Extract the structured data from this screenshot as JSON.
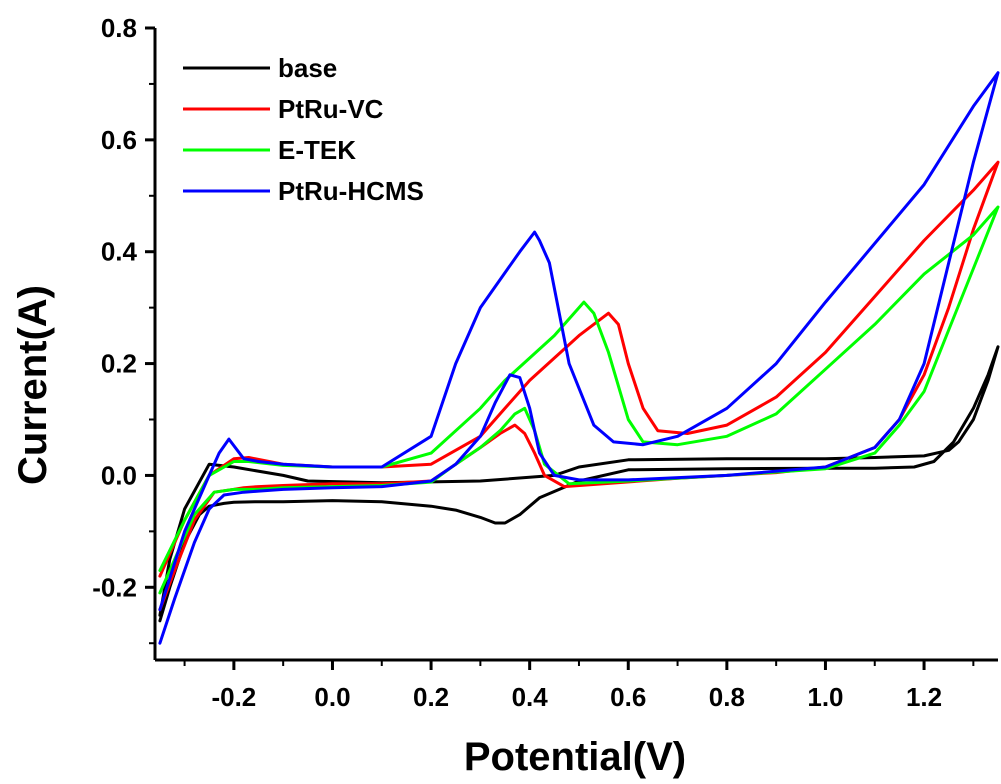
{
  "chart_data": {
    "type": "line",
    "title": "",
    "xlabel": "Potential(V)",
    "ylabel": "Current(A)",
    "xlim": [
      -0.36,
      1.35
    ],
    "ylim": [
      -0.33,
      0.8
    ],
    "x_ticks": [
      -0.2,
      0.0,
      0.2,
      0.4,
      0.6,
      0.8,
      1.0,
      1.2
    ],
    "x_tick_labels": [
      "-0.2",
      "0.0",
      "0.2",
      "0.4",
      "0.6",
      "0.8",
      "1.0",
      "1.2"
    ],
    "y_ticks": [
      -0.2,
      0.0,
      0.2,
      0.4,
      0.6,
      0.8
    ],
    "y_tick_labels": [
      "-0.2",
      "0.0",
      "0.2",
      "0.4",
      "0.6",
      "0.8"
    ],
    "grid": false,
    "legend_position": "top-left",
    "series": [
      {
        "name": "base",
        "color": "#000000",
        "x": [
          -0.35,
          -0.33,
          -0.3,
          -0.27,
          -0.25,
          -0.22,
          -0.2,
          -0.15,
          -0.1,
          0.0,
          0.1,
          0.2,
          0.25,
          0.3,
          0.33,
          0.35,
          0.38,
          0.42,
          0.5,
          0.6,
          0.8,
          1.0,
          1.1,
          1.18,
          1.22,
          1.26,
          1.3,
          1.33,
          1.35,
          1.33,
          1.3,
          1.27,
          1.25,
          1.2,
          1.1,
          1.0,
          0.8,
          0.6,
          0.5,
          0.45,
          0.3,
          0.1,
          -0.05,
          -0.1,
          -0.2,
          -0.25,
          -0.3,
          -0.33,
          -0.35
        ],
        "y": [
          -0.26,
          -0.2,
          -0.12,
          -0.07,
          -0.055,
          -0.05,
          -0.048,
          -0.047,
          -0.047,
          -0.045,
          -0.047,
          -0.055,
          -0.062,
          -0.075,
          -0.085,
          -0.085,
          -0.07,
          -0.04,
          -0.01,
          0.01,
          0.012,
          0.013,
          0.013,
          0.015,
          0.025,
          0.06,
          0.12,
          0.18,
          0.23,
          0.17,
          0.1,
          0.06,
          0.045,
          0.035,
          0.032,
          0.03,
          0.03,
          0.028,
          0.015,
          0.0,
          -0.01,
          -0.013,
          -0.01,
          0.0,
          0.015,
          0.02,
          -0.06,
          -0.15,
          -0.25
        ]
      },
      {
        "name": "PtRu-VC",
        "color": "#ff0000",
        "x": [
          -0.35,
          -0.32,
          -0.28,
          -0.24,
          -0.2,
          -0.18,
          -0.15,
          -0.1,
          0.0,
          0.1,
          0.2,
          0.25,
          0.3,
          0.34,
          0.37,
          0.39,
          0.41,
          0.43,
          0.47,
          0.55,
          0.7,
          0.9,
          1.0,
          1.1,
          1.15,
          1.2,
          1.25,
          1.3,
          1.35,
          1.3,
          1.2,
          1.1,
          1.0,
          0.9,
          0.8,
          0.72,
          0.66,
          0.63,
          0.6,
          0.58,
          0.56,
          0.5,
          0.4,
          0.35,
          0.3,
          0.2,
          0.1,
          0.0,
          -0.1,
          -0.17,
          -0.2,
          -0.25,
          -0.3,
          -0.35
        ],
        "y": [
          -0.24,
          -0.17,
          -0.08,
          -0.03,
          -0.025,
          -0.022,
          -0.02,
          -0.018,
          -0.015,
          -0.015,
          -0.01,
          0.02,
          0.05,
          0.075,
          0.09,
          0.075,
          0.04,
          0.0,
          -0.02,
          -0.015,
          -0.005,
          0.005,
          0.015,
          0.05,
          0.1,
          0.18,
          0.3,
          0.44,
          0.56,
          0.51,
          0.42,
          0.32,
          0.22,
          0.14,
          0.09,
          0.075,
          0.08,
          0.12,
          0.2,
          0.27,
          0.29,
          0.25,
          0.17,
          0.12,
          0.07,
          0.02,
          0.015,
          0.015,
          0.02,
          0.032,
          0.03,
          0.0,
          -0.08,
          -0.18
        ]
      },
      {
        "name": "E-TEK",
        "color": "#00ff00",
        "x": [
          -0.35,
          -0.32,
          -0.28,
          -0.24,
          -0.2,
          -0.15,
          -0.1,
          0.0,
          0.1,
          0.2,
          0.25,
          0.3,
          0.34,
          0.37,
          0.39,
          0.41,
          0.43,
          0.48,
          0.6,
          0.8,
          1.0,
          1.1,
          1.15,
          1.2,
          1.25,
          1.3,
          1.35,
          1.3,
          1.2,
          1.1,
          1.0,
          0.9,
          0.8,
          0.7,
          0.63,
          0.6,
          0.56,
          0.53,
          0.51,
          0.45,
          0.35,
          0.3,
          0.2,
          0.1,
          0.0,
          -0.1,
          -0.17,
          -0.2,
          -0.25,
          -0.3,
          -0.35
        ],
        "y": [
          -0.21,
          -0.15,
          -0.07,
          -0.03,
          -0.025,
          -0.025,
          -0.022,
          -0.02,
          -0.018,
          -0.012,
          0.02,
          0.05,
          0.08,
          0.11,
          0.12,
          0.08,
          0.02,
          -0.015,
          -0.01,
          0.0,
          0.012,
          0.04,
          0.09,
          0.15,
          0.26,
          0.37,
          0.48,
          0.43,
          0.36,
          0.27,
          0.19,
          0.11,
          0.07,
          0.055,
          0.06,
          0.1,
          0.22,
          0.29,
          0.31,
          0.25,
          0.17,
          0.12,
          0.04,
          0.015,
          0.015,
          0.018,
          0.025,
          0.025,
          0.0,
          -0.08,
          -0.17
        ]
      },
      {
        "name": "PtRu-HCMS",
        "color": "#0000ff",
        "x": [
          -0.35,
          -0.32,
          -0.28,
          -0.25,
          -0.22,
          -0.18,
          -0.15,
          -0.1,
          0.0,
          0.1,
          0.2,
          0.25,
          0.3,
          0.33,
          0.36,
          0.38,
          0.4,
          0.42,
          0.45,
          0.5,
          0.6,
          0.8,
          1.0,
          1.1,
          1.15,
          1.2,
          1.25,
          1.3,
          1.35,
          1.3,
          1.2,
          1.0,
          0.9,
          0.8,
          0.7,
          0.63,
          0.57,
          0.53,
          0.48,
          0.44,
          0.42,
          0.41,
          0.38,
          0.3,
          0.25,
          0.2,
          0.1,
          0.0,
          -0.1,
          -0.15,
          -0.18,
          -0.21,
          -0.23,
          -0.25,
          -0.3,
          -0.35
        ],
        "y": [
          -0.3,
          -0.22,
          -0.12,
          -0.06,
          -0.035,
          -0.03,
          -0.028,
          -0.025,
          -0.022,
          -0.02,
          -0.01,
          0.02,
          0.07,
          0.13,
          0.18,
          0.175,
          0.12,
          0.04,
          0.0,
          -0.008,
          -0.008,
          0.0,
          0.015,
          0.05,
          0.1,
          0.2,
          0.38,
          0.56,
          0.72,
          0.66,
          0.52,
          0.31,
          0.2,
          0.12,
          0.07,
          0.055,
          0.06,
          0.09,
          0.2,
          0.38,
          0.42,
          0.435,
          0.4,
          0.3,
          0.2,
          0.07,
          0.015,
          0.015,
          0.02,
          0.025,
          0.03,
          0.065,
          0.04,
          0.0,
          -0.1,
          -0.24
        ]
      }
    ]
  }
}
